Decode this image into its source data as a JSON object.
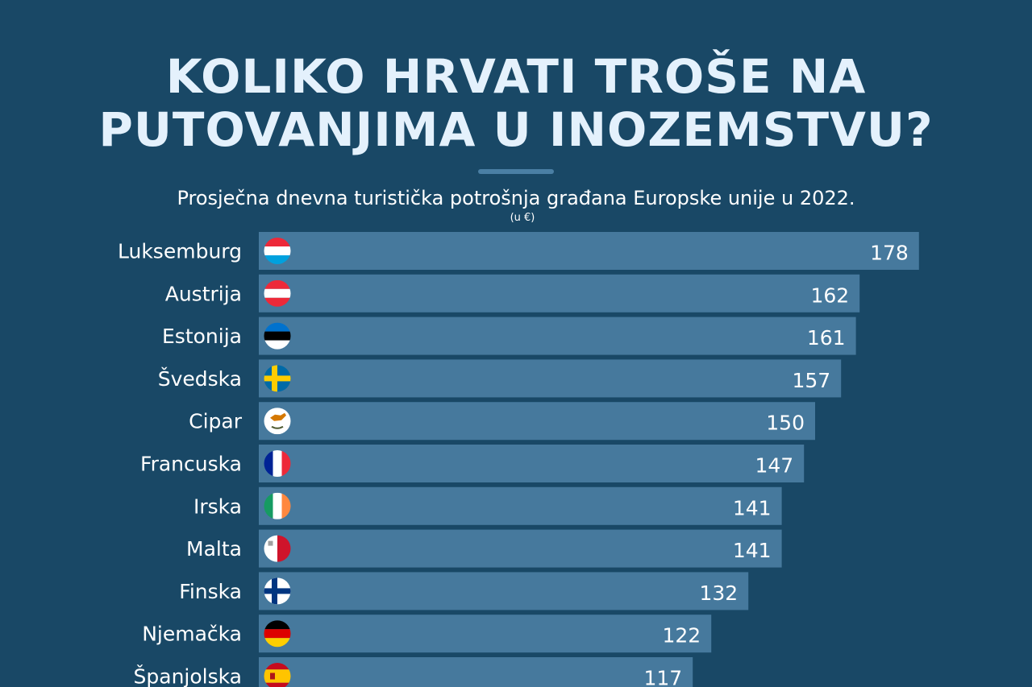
{
  "header": {
    "title_line1": "KOLIKO HRVATI TROŠE NA",
    "title_line2": "PUTOVANJIMA U INOZEMSTVU?",
    "subtitle": "Prosječna dnevna turistička potrošnja građana Europske unije u 2022.",
    "unit": "(u €)"
  },
  "colors": {
    "background": "#194866",
    "bar": "#46799d",
    "title": "#e4f1fc"
  },
  "chart_data": {
    "type": "bar",
    "orientation": "horizontal",
    "title": "Prosječna dnevna turistička potrošnja građana Europske unije u 2022.",
    "unit": "(u €)",
    "categories": [
      "Luksemburg",
      "Austrija",
      "Estonija",
      "Švedska",
      "Cipar",
      "Francuska",
      "Irska",
      "Malta",
      "Finska",
      "Njemačka",
      "Španjolska"
    ],
    "values": [
      178,
      162,
      161,
      157,
      150,
      147,
      141,
      141,
      132,
      122,
      117
    ],
    "flags": [
      "luxembourg-flag-icon",
      "austria-flag-icon",
      "estonia-flag-icon",
      "sweden-flag-icon",
      "cyprus-flag-icon",
      "france-flag-icon",
      "ireland-flag-icon",
      "malta-flag-icon",
      "finland-flag-icon",
      "germany-flag-icon",
      "spain-flag-icon"
    ],
    "data_labels": true,
    "grid": false,
    "legend": "none"
  }
}
